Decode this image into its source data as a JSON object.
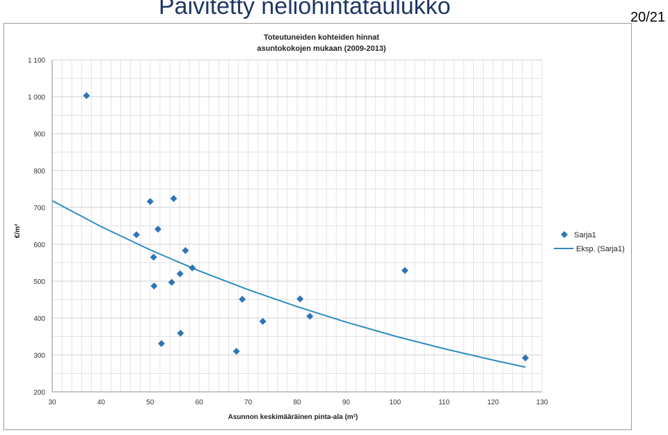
{
  "slide": {
    "title": "Päivitetty neliöhintataulukko",
    "page": "20/21"
  },
  "chart_data": {
    "type": "scatter",
    "title": "Toteutuneiden kohteiden hinnat",
    "subtitle": "asuntokokojen mukaan (2009-2013)",
    "xlabel": "Asunnon keskimääräinen pinta-ala (m²)",
    "ylabel": "€/m²",
    "xlim": [
      30,
      130
    ],
    "ylim": [
      200,
      1100
    ],
    "xticks": [
      30,
      40,
      50,
      60,
      70,
      80,
      90,
      100,
      110,
      120,
      130
    ],
    "yticks": [
      200,
      300,
      400,
      500,
      600,
      700,
      800,
      900,
      1000,
      1100
    ],
    "ytick_labels": [
      "200",
      "300",
      "400",
      "500",
      "600",
      "700",
      "800",
      "900",
      "1 000",
      "1 100"
    ],
    "grid": true,
    "legend_position": "right",
    "colors": {
      "points": "#2e75b6",
      "trend": "#2e8bc0"
    },
    "series": [
      {
        "name": "Sarja1",
        "kind": "points",
        "x": [
          37,
          47.2,
          50,
          50.7,
          50.8,
          51.6,
          52.3,
          54.4,
          54.8,
          56.1,
          56.2,
          57.2,
          58.6,
          67.6,
          68.8,
          73,
          80.6,
          82.6,
          102,
          126.6
        ],
        "y": [
          1003,
          626,
          716,
          565,
          487,
          641,
          331,
          497,
          724,
          520,
          359,
          583,
          536,
          310,
          451,
          391,
          452,
          405,
          529,
          292
        ]
      },
      {
        "name": "Eksp. (Sarja1)",
        "kind": "trendline",
        "x": [
          30,
          40,
          50,
          60,
          70,
          80,
          90,
          100,
          110,
          120,
          126.6
        ],
        "y": [
          718,
          648,
          585,
          528,
          477,
          431,
          389,
          351,
          317,
          286,
          267
        ]
      }
    ]
  }
}
